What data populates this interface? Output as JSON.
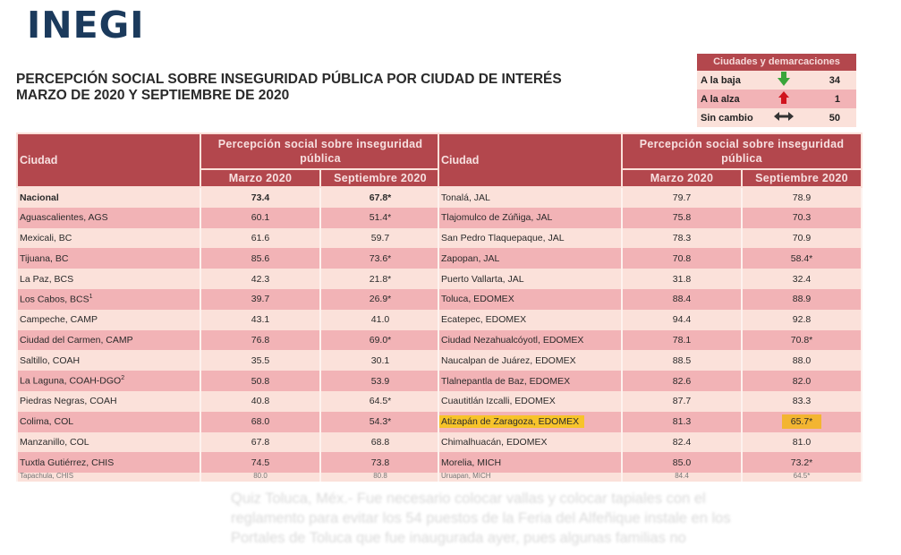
{
  "header": {
    "logo": "INEGI",
    "title_line1": "PERCEPCIÓN SOCIAL SOBRE INSEGURIDAD PÚBLICA POR CIUDAD DE INTERÉS",
    "title_line2": "MARZO DE 2020 Y SEPTIEMBRE DE 2020"
  },
  "legend": {
    "title": "Ciudades y demarcaciones",
    "rows": [
      {
        "label": "A la baja",
        "icon": "arrow-down-green",
        "color": "#3aa53a",
        "count": "34"
      },
      {
        "label": "A la alza",
        "icon": "arrow-up-red",
        "color": "#d0141e",
        "count": "1"
      },
      {
        "label": "Sin cambio",
        "icon": "arrow-left-right-black",
        "color": "#333333",
        "count": "50"
      }
    ]
  },
  "table": {
    "col_city": "Ciudad",
    "col_group": "Percepción social sobre inseguridad pública",
    "col_march": "Marzo 2020",
    "col_sept": "Septiembre 2020",
    "colors": {
      "header": "#b3474d",
      "row_light": "#fbe1da",
      "row_dark": "#f2b3b6",
      "highlight": "#f7c42a"
    },
    "left_rows": [
      {
        "city": "Nacional",
        "march": "73.4",
        "sept": "67.8*"
      },
      {
        "city": "Aguascalientes, AGS",
        "march": "60.1",
        "sept": "51.4*"
      },
      {
        "city": "Mexicali, BC",
        "march": "61.6",
        "sept": "59.7"
      },
      {
        "city": "Tijuana, BC",
        "march": "85.6",
        "sept": "73.6*"
      },
      {
        "city": "La Paz, BCS",
        "march": "42.3",
        "sept": "21.8*"
      },
      {
        "city": "Los Cabos, BCS",
        "sup": "1",
        "march": "39.7",
        "sept": "26.9*"
      },
      {
        "city": "Campeche, CAMP",
        "march": "43.1",
        "sept": "41.0"
      },
      {
        "city": "Ciudad del Carmen, CAMP",
        "march": "76.8",
        "sept": "69.0*"
      },
      {
        "city": "Saltillo, COAH",
        "march": "35.5",
        "sept": "30.1"
      },
      {
        "city": "La Laguna, COAH-DGO",
        "sup": "2",
        "march": "50.8",
        "sept": "53.9"
      },
      {
        "city": "Piedras Negras, COAH",
        "march": "40.8",
        "sept": "64.5*"
      },
      {
        "city": "Colima, COL",
        "march": "68.0",
        "sept": "54.3*"
      },
      {
        "city": "Manzanillo, COL",
        "march": "67.8",
        "sept": "68.8"
      },
      {
        "city": "Tuxtla Gutiérrez, CHIS",
        "march": "74.5",
        "sept": "73.8"
      },
      {
        "city": "Tapachula, CHIS",
        "march": "80.0",
        "sept": "80.8"
      }
    ],
    "right_rows": [
      {
        "city": "Tonalá, JAL",
        "march": "79.7",
        "sept": "78.9"
      },
      {
        "city": "Tlajomulco de Zúñiga, JAL",
        "march": "75.8",
        "sept": "70.3"
      },
      {
        "city": "San Pedro Tlaquepaque, JAL",
        "march": "78.3",
        "sept": "70.9"
      },
      {
        "city": "Zapopan, JAL",
        "march": "70.8",
        "sept": "58.4*"
      },
      {
        "city": "Puerto Vallarta, JAL",
        "march": "31.8",
        "sept": "32.4"
      },
      {
        "city": "Toluca, EDOMEX",
        "march": "88.4",
        "sept": "88.9"
      },
      {
        "city": "Ecatepec, EDOMEX",
        "march": "94.4",
        "sept": "92.8"
      },
      {
        "city": "Ciudad Nezahualcóyotl, EDOMEX",
        "march": "78.1",
        "sept": "70.8*"
      },
      {
        "city": "Naucalpan de Juárez, EDOMEX",
        "march": "88.5",
        "sept": "88.0"
      },
      {
        "city": "Tlalnepantla de Baz, EDOMEX",
        "march": "82.6",
        "sept": "82.0"
      },
      {
        "city": "Cuautitlán Izcalli, EDOMEX",
        "march": "87.7",
        "sept": "83.3"
      },
      {
        "city": "Atizapán de Zaragoza, EDOMEX",
        "march": "81.3",
        "sept": "65.7*",
        "highlighted": true
      },
      {
        "city": "Chimalhuacán, EDOMEX",
        "march": "82.4",
        "sept": "81.0"
      },
      {
        "city": "Morelia, MICH",
        "march": "85.0",
        "sept": "73.2*"
      },
      {
        "city": "Uruapan, MICH",
        "march": "84.4",
        "sept": "64.5*"
      }
    ]
  },
  "overlay_caption": "Quiz Toluca, Méx.- Fue necesario colocar vallas y colocar tapiales con el reglamento para evitar los 54 puestos de la Feria del Alfeñique instale en los Portales de Toluca que fue inaugurada ayer, pues algunas familias no"
}
